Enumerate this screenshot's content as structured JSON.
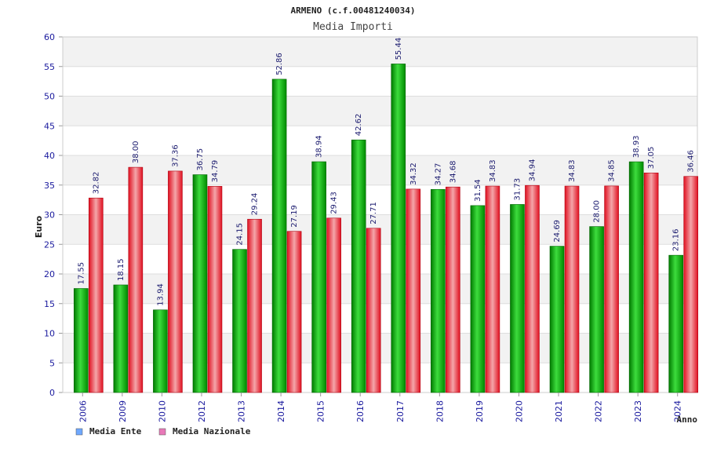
{
  "chart_data": {
    "type": "bar",
    "title": "ARMENO (c.f.00481240034)",
    "subtitle": "Media Importi",
    "ylabel": "Euro",
    "xlabel": "Anno",
    "ylim": [
      0,
      60
    ],
    "yticks": [
      0,
      5,
      10,
      15,
      20,
      25,
      30,
      35,
      40,
      45,
      50,
      55,
      60
    ],
    "grid": true,
    "categories": [
      "2006",
      "2009",
      "2010",
      "2012",
      "2013",
      "2014",
      "2015",
      "2016",
      "2017",
      "2018",
      "2019",
      "2020",
      "2021",
      "2022",
      "2023",
      "2024"
    ],
    "series": [
      {
        "name": "Media Ente",
        "color": "#00b000",
        "legend_color": "#6fa8ff",
        "values": [
          17.55,
          18.15,
          13.94,
          36.75,
          24.15,
          52.86,
          38.94,
          42.62,
          55.44,
          34.27,
          31.54,
          31.73,
          24.69,
          28.0,
          38.93,
          23.16
        ],
        "labels": [
          "17.55",
          "18.15",
          "13.94",
          "36.75",
          "24.15",
          "52.86",
          "38.94",
          "42.62",
          "55.44",
          "34.27",
          "31.54",
          "31.73",
          "24.69",
          "28.00",
          "38.93",
          "23.16"
        ]
      },
      {
        "name": "Media Nazionale",
        "color": "#e8303a",
        "legend_color": "#e879b8",
        "values": [
          32.82,
          38.0,
          37.36,
          34.79,
          29.24,
          27.19,
          29.43,
          27.71,
          34.32,
          34.68,
          34.83,
          34.94,
          34.83,
          34.85,
          37.05,
          36.46
        ],
        "labels": [
          "32.82",
          "38.00",
          "37.36",
          "34.79",
          "29.24",
          "27.19",
          "29.43",
          "27.71",
          "34.32",
          "34.68",
          "34.83",
          "34.94",
          "34.83",
          "34.85",
          "37.05",
          "36.46"
        ]
      }
    ]
  }
}
